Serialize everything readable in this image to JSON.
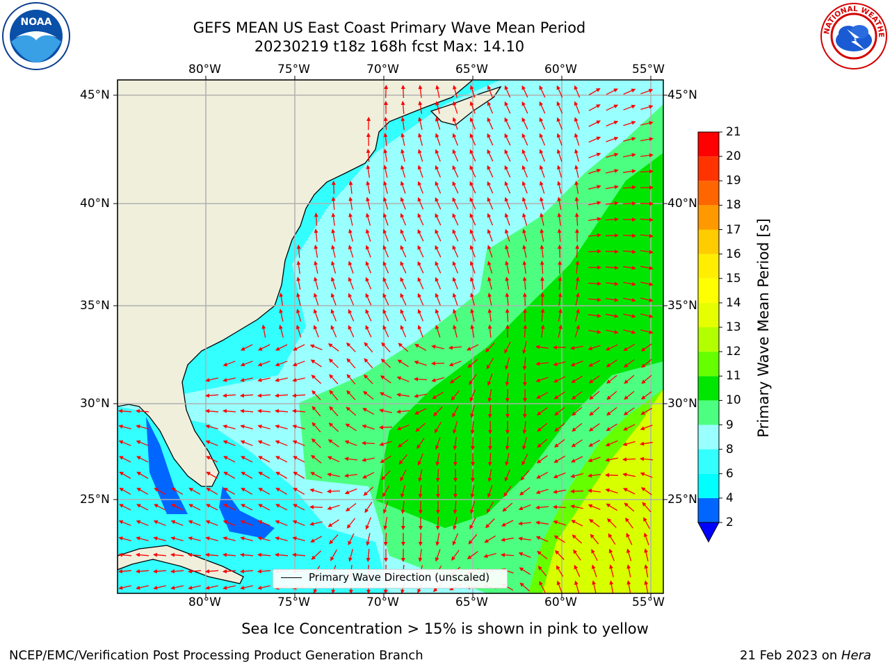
{
  "header": {
    "title_line1": "GEFS MEAN US East Coast Primary Wave Mean Period",
    "title_line2": "20230219 t18z 168h fcst   Max: 14.10"
  },
  "logos": {
    "left": {
      "name": "noaa-logo",
      "text": "NOAA",
      "color": "#0a3d8f"
    },
    "right": {
      "name": "national-weather-service-logo",
      "text": "NATIONAL WEATHER SERVICE",
      "color": "#d40000"
    }
  },
  "map": {
    "longitude_labels": [
      "80°W",
      "75°W",
      "70°W",
      "65°W",
      "60°W",
      "55°W"
    ],
    "longitude_values": [
      -80,
      -75,
      -70,
      -65,
      -60,
      -55
    ],
    "latitude_labels": [
      "45°N",
      "40°N",
      "35°N",
      "30°N",
      "25°N"
    ],
    "latitude_values": [
      45,
      40,
      35,
      30,
      25
    ],
    "lon_range": [
      -85,
      -54.4
    ],
    "lat_range": [
      20.4,
      46
    ],
    "land_color": "#efefdc",
    "coast_color": "#000000",
    "grid_color": "#b0b0b0",
    "arrow_color": "#ff0000",
    "legend_label": "Primary Wave Direction (unscaled)"
  },
  "colorbar": {
    "label": "Primary Wave Mean Period [s]",
    "levels": [
      "2",
      "4",
      "6",
      "8",
      "9",
      "10",
      "11",
      "12",
      "13",
      "14",
      "15",
      "16",
      "17",
      "18",
      "19",
      "20",
      "21"
    ],
    "colors": [
      "#0066ff",
      "#00ffff",
      "#33ffff",
      "#99ffff",
      "#4dff80",
      "#00e600",
      "#66ff00",
      "#b3ff00",
      "#e6ff00",
      "#ffff00",
      "#ffee00",
      "#ffcc00",
      "#ff9900",
      "#ff6600",
      "#ff3300",
      "#ff0000"
    ],
    "under_color": "#0000ff"
  },
  "footer": {
    "sea_ice_note": "Sea Ice Concentration > 15% is shown in pink to yellow",
    "producer": "NCEP/EMC/Verification Post Processing Product Generation Branch",
    "date": "21 Feb 2023 on",
    "machine": "Hera"
  }
}
